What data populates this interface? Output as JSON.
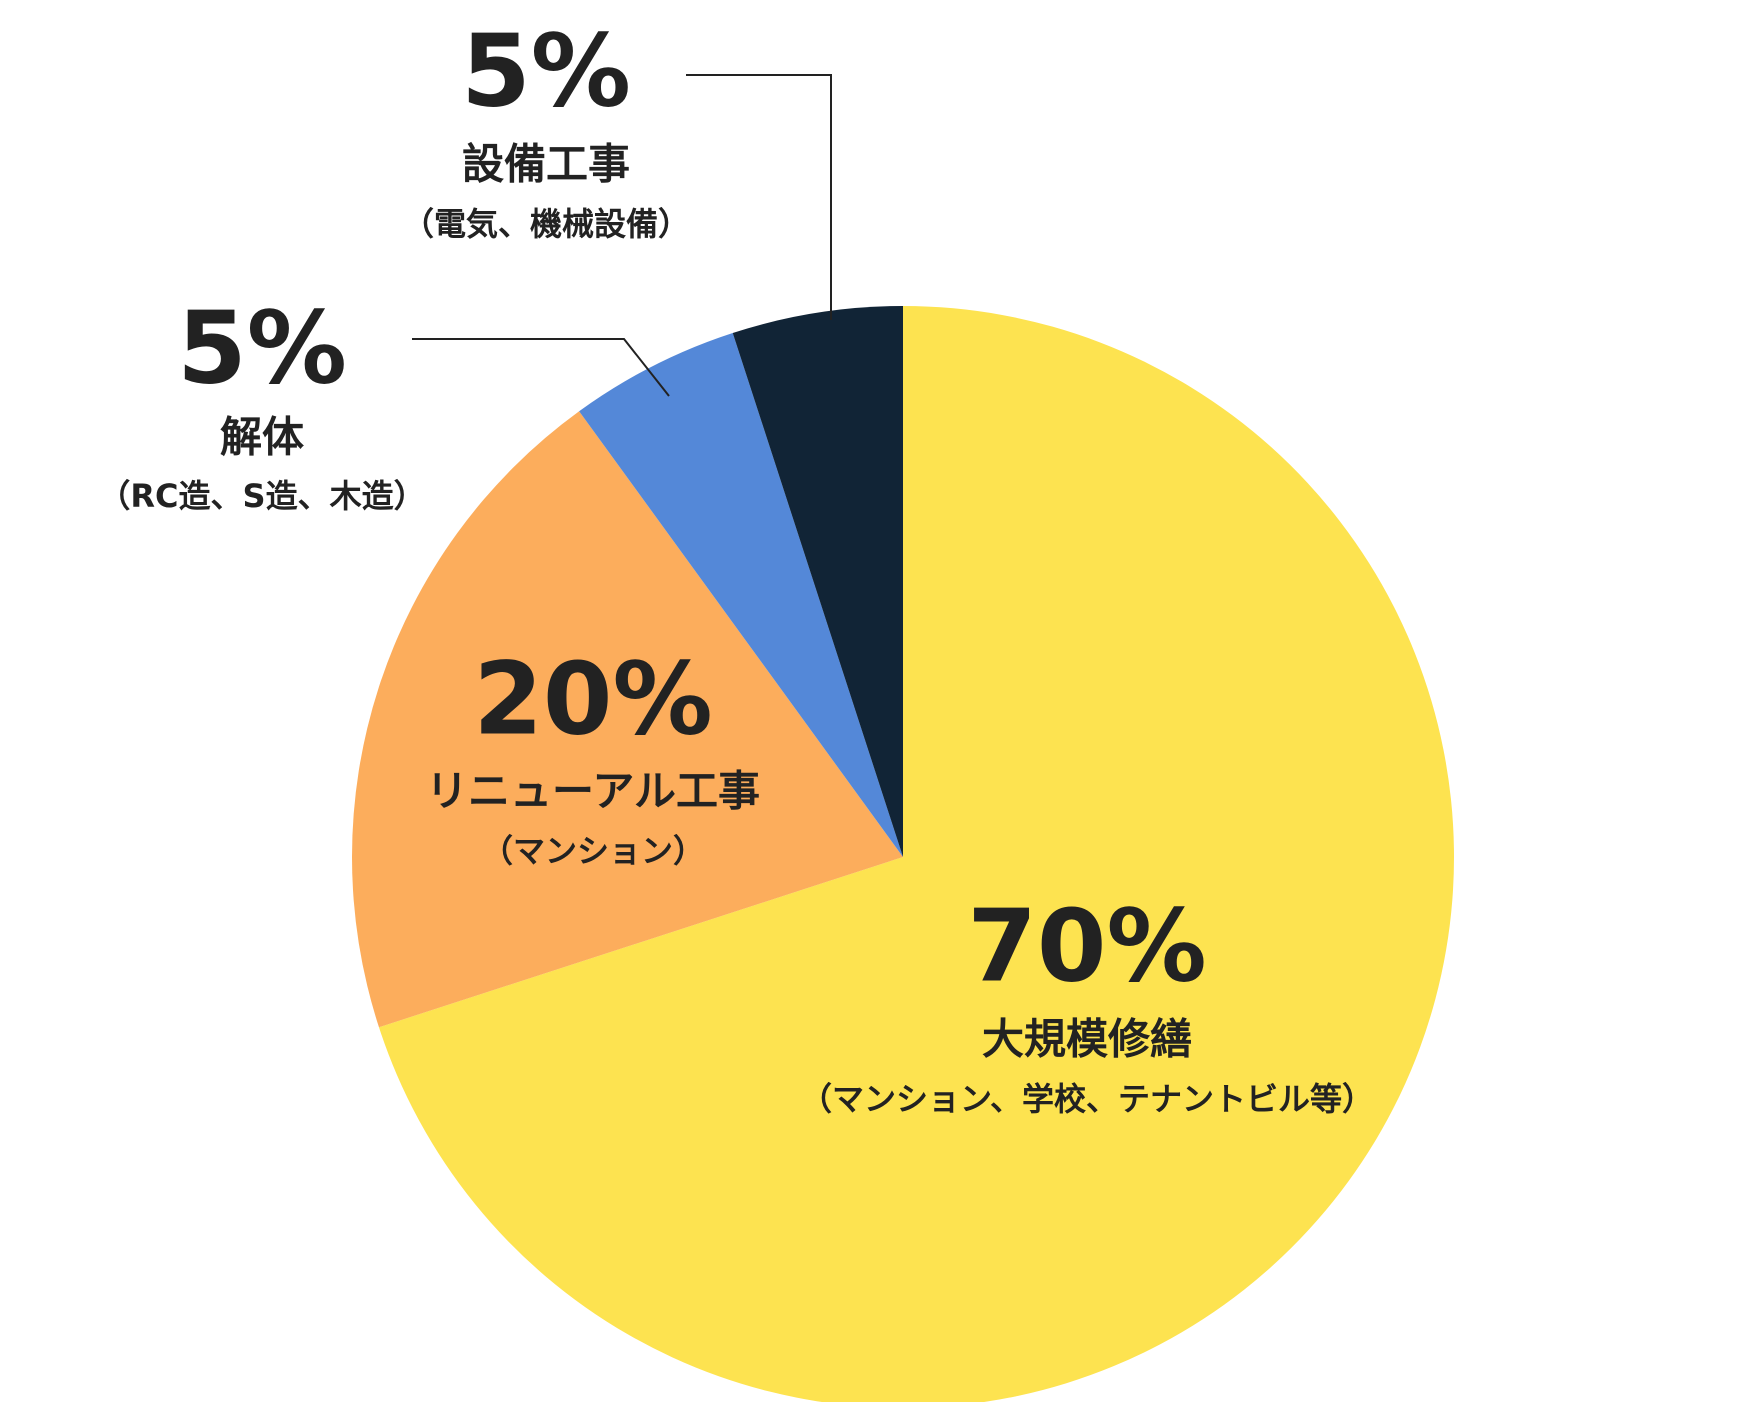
{
  "chart_data": {
    "type": "pie",
    "categories": [
      "大規模修繕",
      "リニューアル工事",
      "解体",
      "設備工事"
    ],
    "category_notes": [
      "（マンション、学校、テナントビル等）",
      "（マンション）",
      "（RC造、S造、木造）",
      "（電気、機械設備）"
    ],
    "values": [
      70,
      20,
      5,
      5
    ],
    "value_labels": [
      "70%",
      "20%",
      "5%",
      "5%"
    ],
    "colors": [
      "#fde350",
      "#fcad5c",
      "#5488d8",
      "#112436"
    ]
  }
}
